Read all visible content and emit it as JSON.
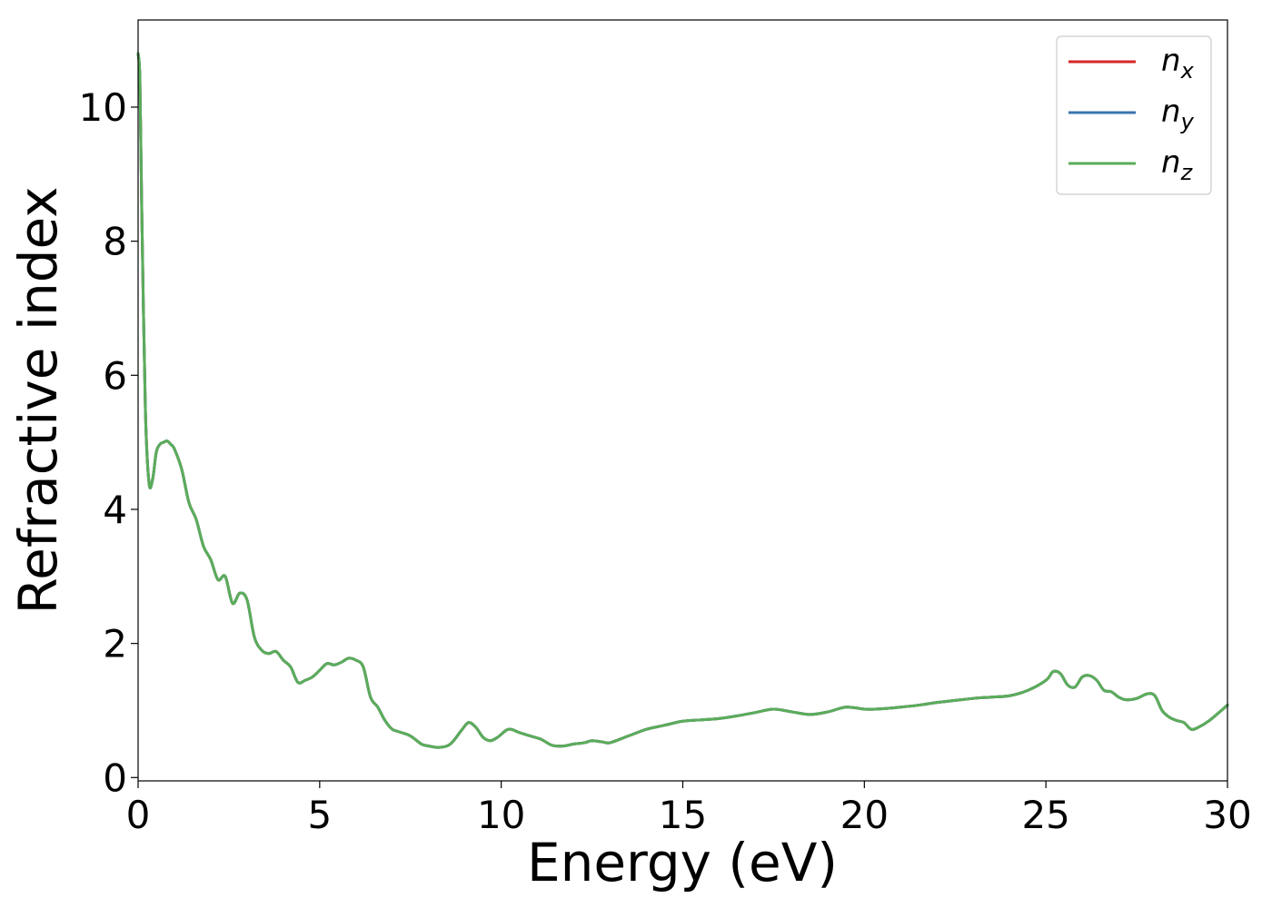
{
  "chart_data": {
    "type": "line",
    "xlabel": "Energy (eV)",
    "ylabel": "Refractive index",
    "xlim": [
      0,
      30
    ],
    "ylim": [
      -0.05,
      11.3
    ],
    "xticks": [
      0,
      5,
      10,
      15,
      20,
      25,
      30
    ],
    "xtick_labels": [
      "0",
      "5",
      "10",
      "15",
      "20",
      "25",
      "30"
    ],
    "yticks": [
      0,
      2,
      4,
      6,
      8,
      10
    ],
    "ytick_labels": [
      "0",
      "2",
      "4",
      "6",
      "8",
      "10"
    ],
    "grid": false,
    "legend_position": "top-right",
    "x": [
      0,
      0.05,
      0.1,
      0.2,
      0.3,
      0.4,
      0.5,
      0.6,
      0.7,
      0.8,
      0.9,
      1.0,
      1.2,
      1.4,
      1.6,
      1.8,
      2.0,
      2.2,
      2.4,
      2.6,
      2.8,
      3.0,
      3.2,
      3.4,
      3.6,
      3.8,
      4.0,
      4.2,
      4.4,
      4.6,
      4.8,
      5.0,
      5.2,
      5.4,
      5.6,
      5.8,
      6.0,
      6.2,
      6.4,
      6.6,
      6.8,
      7.0,
      7.2,
      7.5,
      7.8,
      8.0,
      8.3,
      8.6,
      8.9,
      9.1,
      9.3,
      9.5,
      9.7,
      9.9,
      10.2,
      10.5,
      10.8,
      11.1,
      11.4,
      11.7,
      12.0,
      12.3,
      12.5,
      12.8,
      13.0,
      13.5,
      14.0,
      14.5,
      15.0,
      15.5,
      16.0,
      16.5,
      17.0,
      17.5,
      18.0,
      18.5,
      19.0,
      19.5,
      20.0,
      20.3,
      20.6,
      21.0,
      21.5,
      22.0,
      22.5,
      23.0,
      23.5,
      24.0,
      24.5,
      25.0,
      25.2,
      25.4,
      25.6,
      25.8,
      26.0,
      26.2,
      26.4,
      26.6,
      26.8,
      27.0,
      27.2,
      27.5,
      27.8,
      28.0,
      28.2,
      28.4,
      28.6,
      28.8,
      29.0,
      29.2,
      29.5,
      30.0
    ],
    "series": [
      {
        "name": "n_x",
        "label_base": "n",
        "label_sub": "x",
        "color": "#d62728",
        "values": [
          10.8,
          10.4,
          8.5,
          5.5,
          4.4,
          4.45,
          4.85,
          4.97,
          5.0,
          5.02,
          4.97,
          4.9,
          4.6,
          4.1,
          3.85,
          3.45,
          3.25,
          2.95,
          3.0,
          2.6,
          2.75,
          2.65,
          2.1,
          1.9,
          1.85,
          1.88,
          1.75,
          1.65,
          1.42,
          1.45,
          1.5,
          1.6,
          1.7,
          1.68,
          1.72,
          1.78,
          1.75,
          1.65,
          1.2,
          1.05,
          0.85,
          0.72,
          0.68,
          0.62,
          0.5,
          0.47,
          0.45,
          0.5,
          0.7,
          0.82,
          0.75,
          0.6,
          0.55,
          0.6,
          0.72,
          0.67,
          0.62,
          0.57,
          0.48,
          0.47,
          0.5,
          0.52,
          0.55,
          0.53,
          0.52,
          0.62,
          0.72,
          0.78,
          0.84,
          0.86,
          0.88,
          0.92,
          0.97,
          1.02,
          0.98,
          0.94,
          0.98,
          1.05,
          1.02,
          1.02,
          1.03,
          1.05,
          1.08,
          1.12,
          1.15,
          1.18,
          1.2,
          1.22,
          1.3,
          1.45,
          1.58,
          1.55,
          1.38,
          1.35,
          1.5,
          1.52,
          1.45,
          1.3,
          1.28,
          1.2,
          1.16,
          1.18,
          1.25,
          1.22,
          1.0,
          0.9,
          0.85,
          0.82,
          0.72,
          0.75,
          0.85,
          1.08
        ]
      },
      {
        "name": "n_y",
        "label_base": "n",
        "label_sub": "y",
        "color": "#3b75af",
        "values": [
          10.8,
          10.4,
          8.5,
          5.5,
          4.4,
          4.45,
          4.85,
          4.97,
          5.0,
          5.02,
          4.97,
          4.9,
          4.6,
          4.1,
          3.85,
          3.45,
          3.25,
          2.95,
          3.0,
          2.6,
          2.75,
          2.65,
          2.1,
          1.9,
          1.85,
          1.88,
          1.75,
          1.65,
          1.42,
          1.45,
          1.5,
          1.6,
          1.7,
          1.68,
          1.72,
          1.78,
          1.75,
          1.65,
          1.2,
          1.05,
          0.85,
          0.72,
          0.68,
          0.62,
          0.5,
          0.47,
          0.45,
          0.5,
          0.7,
          0.82,
          0.75,
          0.6,
          0.55,
          0.6,
          0.72,
          0.67,
          0.62,
          0.57,
          0.48,
          0.47,
          0.5,
          0.52,
          0.55,
          0.53,
          0.52,
          0.62,
          0.72,
          0.78,
          0.84,
          0.86,
          0.88,
          0.92,
          0.97,
          1.02,
          0.98,
          0.94,
          0.98,
          1.05,
          1.02,
          1.02,
          1.03,
          1.05,
          1.08,
          1.12,
          1.15,
          1.18,
          1.2,
          1.22,
          1.3,
          1.45,
          1.58,
          1.55,
          1.38,
          1.35,
          1.5,
          1.52,
          1.45,
          1.3,
          1.28,
          1.2,
          1.16,
          1.18,
          1.25,
          1.22,
          1.0,
          0.9,
          0.85,
          0.82,
          0.72,
          0.75,
          0.85,
          1.08
        ]
      },
      {
        "name": "n_z",
        "label_base": "n",
        "label_sub": "z",
        "color": "#5aad5a",
        "values": [
          10.8,
          10.4,
          8.5,
          5.5,
          4.4,
          4.45,
          4.85,
          4.97,
          5.0,
          5.02,
          4.97,
          4.9,
          4.6,
          4.1,
          3.85,
          3.45,
          3.25,
          2.95,
          3.0,
          2.6,
          2.75,
          2.65,
          2.1,
          1.9,
          1.85,
          1.88,
          1.75,
          1.65,
          1.42,
          1.45,
          1.5,
          1.6,
          1.7,
          1.68,
          1.72,
          1.78,
          1.75,
          1.65,
          1.2,
          1.05,
          0.85,
          0.72,
          0.68,
          0.62,
          0.5,
          0.47,
          0.45,
          0.5,
          0.7,
          0.82,
          0.75,
          0.6,
          0.55,
          0.6,
          0.72,
          0.67,
          0.62,
          0.57,
          0.48,
          0.47,
          0.5,
          0.52,
          0.55,
          0.53,
          0.52,
          0.62,
          0.72,
          0.78,
          0.84,
          0.86,
          0.88,
          0.92,
          0.97,
          1.02,
          0.98,
          0.94,
          0.98,
          1.05,
          1.02,
          1.02,
          1.03,
          1.05,
          1.08,
          1.12,
          1.15,
          1.18,
          1.2,
          1.22,
          1.3,
          1.45,
          1.58,
          1.55,
          1.38,
          1.35,
          1.5,
          1.52,
          1.45,
          1.3,
          1.28,
          1.2,
          1.16,
          1.18,
          1.25,
          1.22,
          1.0,
          0.9,
          0.85,
          0.82,
          0.72,
          0.75,
          0.85,
          1.08
        ]
      }
    ]
  }
}
